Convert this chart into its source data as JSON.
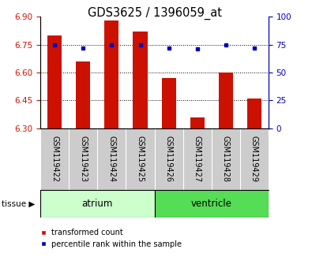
{
  "title": "GDS3625 / 1396059_at",
  "categories": [
    "GSM119422",
    "GSM119423",
    "GSM119424",
    "GSM119425",
    "GSM119426",
    "GSM119427",
    "GSM119428",
    "GSM119429"
  ],
  "red_values": [
    6.8,
    6.66,
    6.88,
    6.82,
    6.57,
    6.36,
    6.6,
    6.46
  ],
  "blue_values": [
    75,
    72,
    75,
    75,
    72,
    71,
    75,
    72
  ],
  "ylim_left": [
    6.3,
    6.9
  ],
  "ylim_right": [
    0,
    100
  ],
  "yticks_left": [
    6.3,
    6.45,
    6.6,
    6.75,
    6.9
  ],
  "yticks_right": [
    0,
    25,
    50,
    75,
    100
  ],
  "hlines": [
    6.75,
    6.6,
    6.45
  ],
  "bar_color": "#CC1100",
  "blue_color": "#0000BB",
  "bar_width": 0.5,
  "left_tick_color": "#CC1100",
  "right_tick_color": "#0000BB",
  "tick_label_fontsize": 7.5,
  "x_tick_fontsize": 7,
  "title_fontsize": 10.5,
  "atrium_color": "#CCFFCC",
  "ventricle_color": "#55DD55",
  "tissue_label_fontsize": 8.5,
  "legend_fontsize": 7,
  "gray_color": "#CCCCCC"
}
